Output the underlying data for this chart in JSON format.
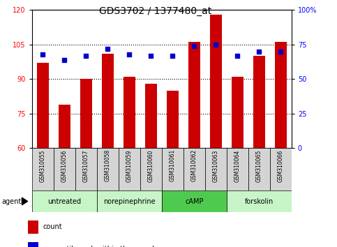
{
  "title": "GDS3702 / 1377480_at",
  "samples": [
    "GSM310055",
    "GSM310056",
    "GSM310057",
    "GSM310058",
    "GSM310059",
    "GSM310060",
    "GSM310061",
    "GSM310062",
    "GSM310063",
    "GSM310064",
    "GSM310065",
    "GSM310066"
  ],
  "count_values": [
    97,
    79,
    90,
    101,
    91,
    88,
    85,
    106,
    118,
    91,
    100,
    106
  ],
  "percentile_values": [
    68,
    64,
    67,
    72,
    68,
    67,
    67,
    74,
    75,
    67,
    70,
    70
  ],
  "ylim_left": [
    60,
    120
  ],
  "ylim_right": [
    0,
    100
  ],
  "yticks_left": [
    60,
    75,
    90,
    105,
    120
  ],
  "yticks_right": [
    0,
    25,
    50,
    75,
    100
  ],
  "groups": [
    {
      "label": "untreated",
      "start": 0,
      "end": 3
    },
    {
      "label": "norepinephrine",
      "start": 3,
      "end": 6
    },
    {
      "label": "cAMP",
      "start": 6,
      "end": 9
    },
    {
      "label": "forskolin",
      "start": 9,
      "end": 12
    }
  ],
  "group_colors": [
    "#c8f5c8",
    "#c8f5c8",
    "#4ecb4e",
    "#c8f5c8"
  ],
  "bar_color": "#CC0000",
  "dot_color": "#0000CC",
  "title_fontsize": 10,
  "tick_fontsize": 7,
  "sample_fontsize": 5.5,
  "group_fontsize": 7,
  "legend_fontsize": 7,
  "agent_fontsize": 7,
  "gridline_ticks": [
    75,
    90,
    105
  ]
}
